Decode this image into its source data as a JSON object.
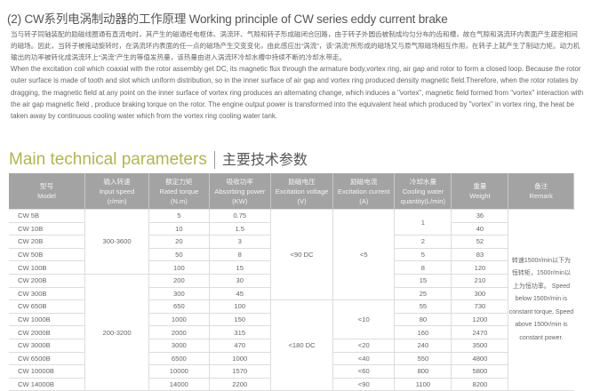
{
  "heading": "(2) CW系列电涡制动器的工作原理  Working principle of CW series eddy current brake",
  "text_cn": "当与转子同轴装配的励磁线圈通有直流电时，其产生的磁通经电枢体、涡流环、气隙和转子形成磁闭合回路，由于转子外圆齿被制成均匀分布的齿和槽，故在气隙和涡流环内表面产生疏密相间的磁场。因此，当转子被拖动旋转时，在涡流环内表面的任一点的磁场产生交变变化，由此感应出“涡流”，该“涡流”所形成的磁场又与原气隙磁场相互作用，在转子上就产生了制动力矩。动力机输出的功率被转化成涡流环上“涡流”产生的等值发热量，该热量由进入涡流环冷却水槽中持续不断的冷却水带走。",
  "text_en": "When the excitation coil which coaxial with the rotor assembly get DC, its magnetic flux through the armature body,vortex ring, air gap and rotor to form a closed loop. Because the rotor outer surface is made of tooth and slot which uniform distribution, so in the inner surface of air gap and vortex ring produced density magnetic field.Therefore, when the rotor rotates by dragging, the magnetic field at any point on the inner surface of vortex ring produces an alternating change, which induces a \"vortex\", magnetic field formed from \"vortex\" interaction with the air gap magnetic field , produce braking torque on the rotor. The engine output power is transformed into the equivalent heat which produced by \"vortex\" in vortex ring, the heat be taken away by continuous cooling water which from the vortex ring cooling water tank.",
  "section_title_en": "Main technical parameters",
  "section_title_cn": "主要技术参数",
  "colors": {
    "title": "#b2b64a",
    "header_bg": "#a3a3a3"
  },
  "table": {
    "headers": [
      [
        "型号",
        "Model",
        ""
      ],
      [
        "输入转速",
        "Input speed",
        "(r/min)"
      ],
      [
        "额定力矩",
        "Rated torque",
        "(N.m)"
      ],
      [
        "吸收功率",
        "Absorbing power",
        "(KW)"
      ],
      [
        "励磁电压",
        "Excitation voltage",
        "(V)"
      ],
      [
        "励磁电流",
        "Excitation current",
        "(A)"
      ],
      [
        "冷却水量",
        "Cooling water",
        "quantity(L/min)"
      ],
      [
        "重量",
        "Weight",
        ""
      ],
      [
        "备注",
        "Remark",
        ""
      ]
    ],
    "models": [
      "CW 5B",
      "CW 10B",
      "CW 20B",
      "CW 50B",
      "CW 100B",
      "CW 200B",
      "CW 300B",
      "CW 650B",
      "CW 1000B",
      "CW 2000B",
      "CW 3000B",
      "CW 6500B",
      "CW 10000B",
      "CW 14000B"
    ],
    "torque": [
      "5",
      "10",
      "20",
      "50",
      "100",
      "200",
      "300",
      "650",
      "1000",
      "2000",
      "3000",
      "6500",
      "10000",
      "14000"
    ],
    "power": [
      "0.75",
      "1.5",
      "3",
      "8",
      "15",
      "30",
      "45",
      "100",
      "150",
      "315",
      "470",
      "1000",
      "1570",
      "2200"
    ],
    "weight": [
      "36",
      "40",
      "52",
      "83",
      "120",
      "210",
      "300",
      "730",
      "1200",
      "2470",
      "3500",
      "4800",
      "5800",
      "8200"
    ],
    "speed": [
      {
        "value": "300-3600",
        "rows": 5
      },
      {
        "value": "200-3200",
        "rows": 9
      }
    ],
    "voltage": [
      {
        "value": "<90 DC",
        "rows": 7
      },
      {
        "value": "<180 DC",
        "rows": 7
      }
    ],
    "current": [
      {
        "value": "<5",
        "rows": 7
      },
      {
        "value": "<10",
        "rows": 3
      },
      {
        "value": "<20",
        "rows": 1
      },
      {
        "value": "<40",
        "rows": 1
      },
      {
        "value": "<60",
        "rows": 1
      },
      {
        "value": "<90",
        "rows": 1
      }
    ],
    "water": [
      {
        "value": "1",
        "rows": 2
      },
      {
        "value": "2",
        "rows": 1
      },
      {
        "value": "5",
        "rows": 1
      },
      {
        "value": "8",
        "rows": 1
      },
      {
        "value": "15",
        "rows": 1
      },
      {
        "value": "25",
        "rows": 1
      },
      {
        "value": "55",
        "rows": 1
      },
      {
        "value": "80",
        "rows": 1
      },
      {
        "value": "160",
        "rows": 1
      },
      {
        "value": "240",
        "rows": 1
      },
      {
        "value": "550",
        "rows": 1
      },
      {
        "value": "800",
        "rows": 1
      },
      {
        "value": "1100",
        "rows": 1
      }
    ],
    "remark": "转速1500r/min以下为恒转矩，1500r/min以上为恒功率。 Speed below 1500r/min is constant torque, Speed above 1500r/min is constant power."
  }
}
